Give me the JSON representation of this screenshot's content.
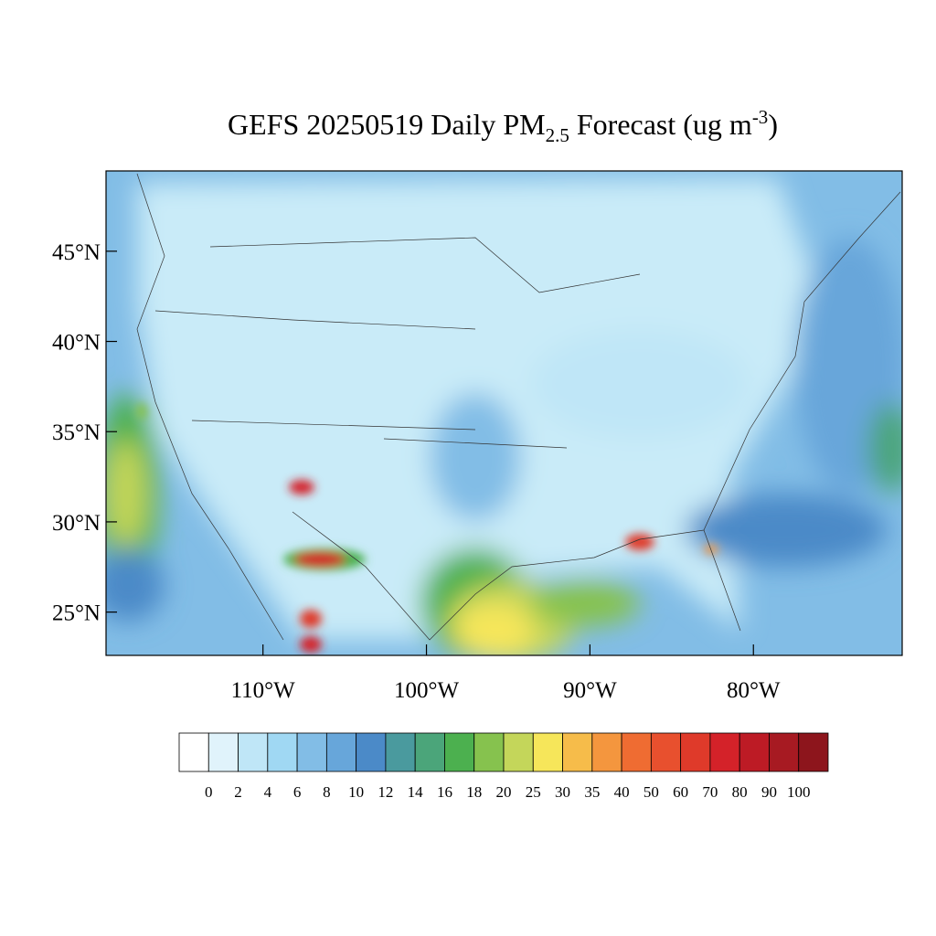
{
  "title": {
    "main": "GEFS 20250519 Daily PM",
    "sub": "2.5",
    "rest": " Forecast (ug m",
    "sup": "-3",
    "end": ")"
  },
  "map": {
    "xlim": [
      -119.6,
      -70.9
    ],
    "ylim": [
      22.6,
      49.45
    ],
    "lat_ticks": [
      {
        "value": 45,
        "label": "45°N"
      },
      {
        "value": 40,
        "label": "40°N"
      },
      {
        "value": 35,
        "label": "35°N"
      },
      {
        "value": 30,
        "label": "30°N"
      },
      {
        "value": 25,
        "label": "25°N"
      }
    ],
    "lon_ticks": [
      {
        "value": -110,
        "label": "110°W"
      },
      {
        "value": -100,
        "label": "100°W"
      },
      {
        "value": -90,
        "label": "90°W"
      },
      {
        "value": -80,
        "label": "80°W"
      }
    ]
  },
  "colorbar": {
    "levels": [
      0,
      2,
      4,
      6,
      8,
      10,
      12,
      14,
      16,
      18,
      20,
      25,
      30,
      35,
      40,
      50,
      60,
      70,
      80,
      90,
      100
    ],
    "colors": [
      "#ffffff",
      "#e0f3fb",
      "#bfe6f7",
      "#a0d8f3",
      "#82bde6",
      "#67a6da",
      "#4b8ac8",
      "#4a9a9e",
      "#4ba57a",
      "#4cb04f",
      "#86c24e",
      "#c4d65a",
      "#f6e65a",
      "#f6bc4a",
      "#f4963e",
      "#ef6c32",
      "#e8502e",
      "#df3a2a",
      "#d42229",
      "#bd1b25",
      "#a71a22",
      "#8d151c"
    ]
  }
}
